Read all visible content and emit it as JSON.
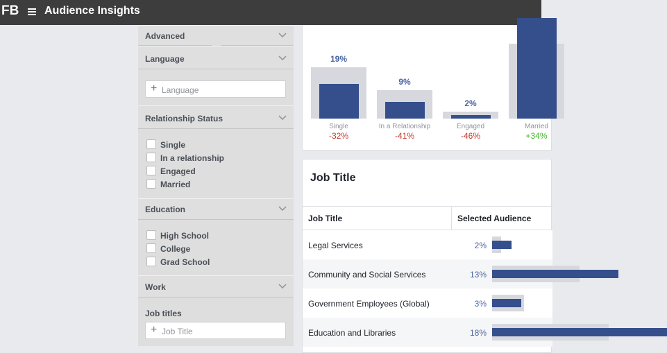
{
  "header": {
    "logo": "FB",
    "title": "Audience Insights"
  },
  "sidebar": {
    "advanced": "Advanced",
    "language": {
      "title": "Language",
      "placeholder": "Language"
    },
    "relationship": {
      "title": "Relationship Status",
      "options": [
        "Single",
        "In a relationship",
        "Engaged",
        "Married"
      ]
    },
    "education": {
      "title": "Education",
      "options": [
        "High School",
        "College",
        "Grad School"
      ]
    },
    "work": "Work",
    "job_titles": {
      "title": "Job titles",
      "placeholder": "Job Title"
    }
  },
  "relationship_chart": {
    "items": [
      {
        "label": "Single",
        "value": 19,
        "value_label": "19%",
        "benchmark": 28,
        "change": "-32%"
      },
      {
        "label": "In a Relationship",
        "value": 9,
        "value_label": "9%",
        "benchmark": 15.5,
        "change": "-41%"
      },
      {
        "label": "Engaged",
        "value": 2,
        "value_label": "2%",
        "benchmark": 3.8,
        "change": "-46%"
      },
      {
        "label": "Married",
        "value": 55,
        "benchmark": 41,
        "change": "+34%"
      }
    ]
  },
  "job_title_panel": {
    "title": "Job Title",
    "columns": [
      "Job Title",
      "Selected Audience"
    ],
    "rows": [
      {
        "title": "Legal Services",
        "value": 2,
        "value_label": "2%",
        "benchmark": 0.9
      },
      {
        "title": "Community and Social Services",
        "value": 13,
        "value_label": "13%",
        "benchmark": 9
      },
      {
        "title": "Government Employees (Global)",
        "value": 3,
        "value_label": "3%",
        "benchmark": 3.3
      },
      {
        "title": "Education and Libraries",
        "value": 18,
        "value_label": "18%",
        "benchmark": 12
      }
    ]
  }
}
